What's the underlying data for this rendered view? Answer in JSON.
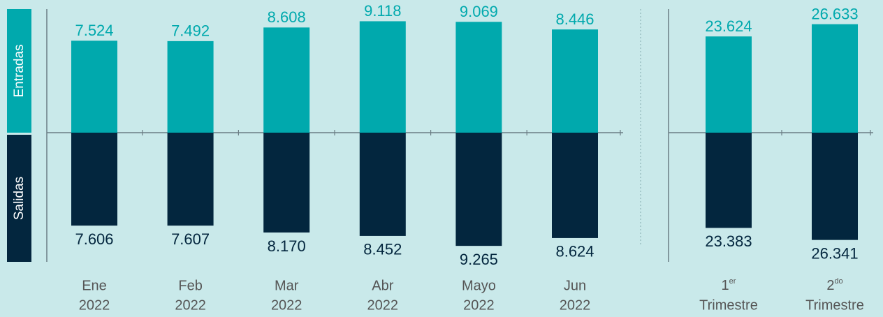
{
  "chart_data": [
    {
      "type": "bar",
      "categories": [
        [
          "Ene",
          "2022"
        ],
        [
          "Feb",
          "2022"
        ],
        [
          "Mar",
          "2022"
        ],
        [
          "Abr",
          "2022"
        ],
        [
          "Mayo",
          "2022"
        ],
        [
          "Jun",
          "2022"
        ]
      ],
      "series": [
        {
          "name": "Entradas",
          "color": "#00a9ad",
          "values": [
            7524,
            7492,
            8608,
            9118,
            9069,
            8446
          ],
          "value_labels": [
            "7.524",
            "7.492",
            "8.608",
            "9.118",
            "9.069",
            "8.446"
          ]
        },
        {
          "name": "Salidas",
          "color": "#03263e",
          "values": [
            7606,
            7607,
            8170,
            8452,
            9265,
            8624
          ],
          "value_labels": [
            "7.606",
            "7.607",
            "8.170",
            "8.452",
            "9.265",
            "8.624"
          ]
        }
      ],
      "ylim": [
        0,
        10000
      ]
    },
    {
      "type": "bar",
      "categories": [
        [
          "1",
          "er",
          "Trimestre"
        ],
        [
          "2",
          "do",
          "Trimestre"
        ]
      ],
      "series": [
        {
          "color": "#00a9ad",
          "values": [
            23624,
            26633
          ],
          "value_labels": [
            "23.624",
            "26.633"
          ]
        },
        {
          "color": "#03263e",
          "values": [
            23383,
            26341
          ],
          "value_labels": [
            "23.383",
            "26.341"
          ]
        }
      ],
      "ylim": [
        0,
        30000
      ]
    }
  ]
}
